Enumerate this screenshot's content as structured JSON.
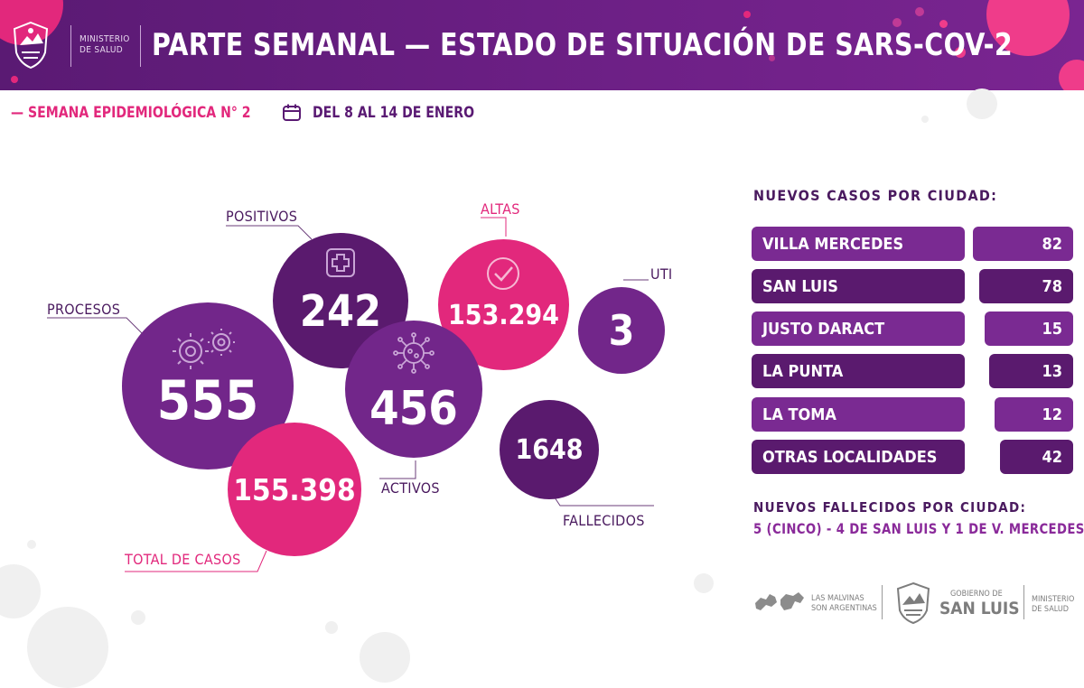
{
  "header": {
    "ministry": [
      "MINISTERIO",
      "DE SALUD"
    ],
    "title": "PARTE SEMANAL — ESTADO DE SITUACIÓN DE SARS-COV-2",
    "accent": "#e2287c",
    "bg": "#5a1a73"
  },
  "subheader": {
    "week": "— SEMANA EPIDEMIOLÓGICA N° 2",
    "dates": "DEL 8 AL 14 DE ENERO",
    "calendar_icon": "calendar-icon"
  },
  "stats": {
    "procesos": {
      "label": "PROCESOS",
      "value": "555",
      "icon": "gears-icon"
    },
    "positivos": {
      "label": "POSITIVOS",
      "value": "242",
      "icon": "medical-cross-icon"
    },
    "altas": {
      "label": "ALTAS",
      "value": "153.294",
      "icon": "check-icon"
    },
    "uti": {
      "label": "UTI",
      "value": "3"
    },
    "activos": {
      "label": "ACTIVOS",
      "value": "456",
      "icon": "virus-icon"
    },
    "fallecidos": {
      "label": "FALLECIDOS",
      "value": "1648"
    },
    "total": {
      "label": "TOTAL DE CASOS",
      "value": "155.398"
    }
  },
  "cities": {
    "title": "NUEVOS CASOS POR CIUDAD:",
    "rows": [
      {
        "name": "VILLA MERCEDES",
        "value": "82"
      },
      {
        "name": "SAN LUIS",
        "value": "78"
      },
      {
        "name": "JUSTO DARACT",
        "value": "15"
      },
      {
        "name": "LA PUNTA",
        "value": "13"
      },
      {
        "name": "LA TOMA",
        "value": "12"
      },
      {
        "name": "OTRAS LOCALIDADES",
        "value": "42"
      }
    ]
  },
  "deaths": {
    "title": "NUEVOS FALLECIDOS POR CIUDAD:",
    "detail": "5 (CINCO) - 4 DE SAN LUIS Y 1 DE V. MERCEDES"
  },
  "footer": {
    "malvinas": [
      "LAS MALVINAS",
      "SON ARGENTINAS"
    ],
    "gobierno": "GOBIERNO DE",
    "province": "SAN LUIS",
    "ministry": [
      "MINISTERIO",
      "DE SALUD"
    ]
  }
}
